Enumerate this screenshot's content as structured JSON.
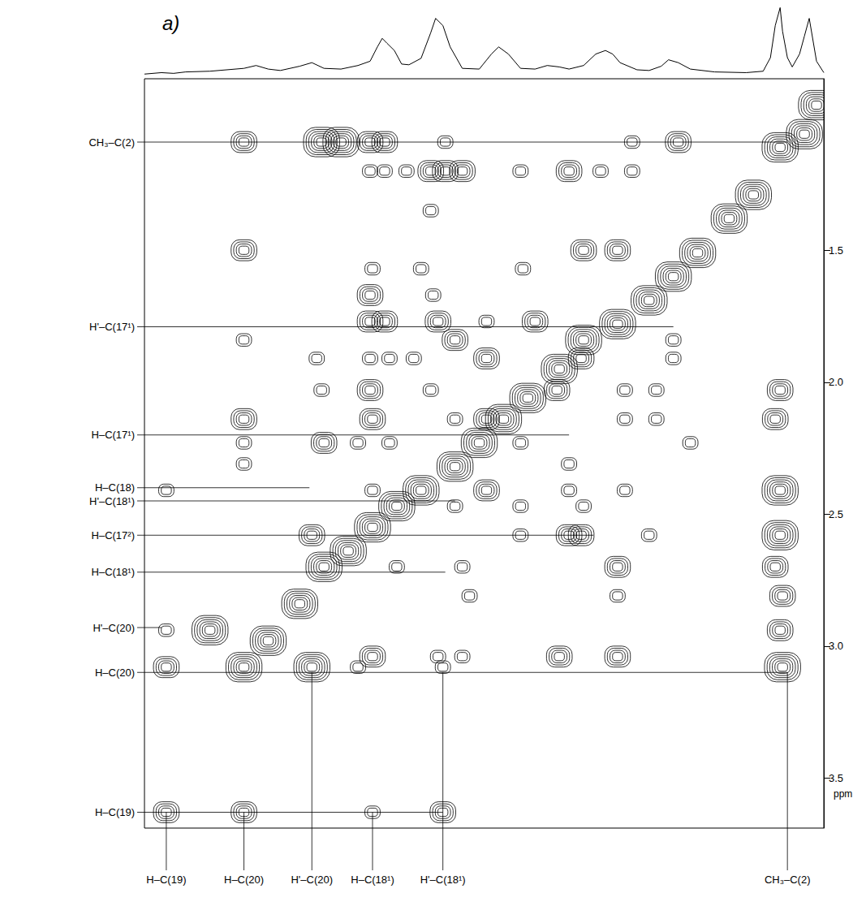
{
  "chart_data": {
    "type": "contour",
    "panel_label": "a)",
    "color": "#000000",
    "grid": false,
    "tick_labels": "y",
    "xlim": [
      3.75,
      0.95
    ],
    "ylim": [
      3.69,
      0.85
    ],
    "yticks": [
      1.5,
      {
        "value": 2,
        "label": "2.0"
      },
      2.5,
      {
        "value": 3,
        "label": "3.0"
      },
      3.5
    ],
    "y_axis_label": "ppm",
    "spectrum": {
      "ylim": [
        0,
        100
      ],
      "x": [
        3.75,
        3.68,
        3.63,
        3.58,
        3.48,
        3.34,
        3.29,
        3.24,
        3.19,
        3.11,
        3.06,
        3.01,
        2.94,
        2.87,
        2.82,
        2.79,
        2.77,
        2.75,
        2.72,
        2.69,
        2.66,
        2.61,
        2.57,
        2.55,
        2.52,
        2.49,
        2.44,
        2.37,
        2.32,
        2.29,
        2.25,
        2.2,
        2.14,
        2.09,
        2.04,
        2.0,
        1.94,
        1.89,
        1.85,
        1.82,
        1.79,
        1.72,
        1.67,
        1.62,
        1.59,
        1.55,
        1.5,
        1.4,
        1.27,
        1.2,
        1.17,
        1.15,
        1.13,
        1.12,
        1.1,
        1.08,
        1.05,
        1.03,
        1.01,
        0.98,
        0.95
      ],
      "intensity": [
        2,
        4,
        3,
        5,
        6,
        10,
        14,
        9,
        7,
        13,
        18,
        10,
        9,
        14,
        20,
        40,
        52,
        45,
        35,
        16,
        15,
        24,
        60,
        80,
        70,
        40,
        10,
        9,
        30,
        40,
        30,
        10,
        9,
        14,
        12,
        9,
        14,
        30,
        35,
        30,
        18,
        8,
        7,
        13,
        22,
        18,
        9,
        5,
        4,
        6,
        25,
        70,
        95,
        62,
        25,
        12,
        30,
        55,
        80,
        20,
        4
      ]
    },
    "peaks": [
      [
        3.34,
        1.09,
        2
      ],
      [
        3.02,
        1.09,
        3
      ],
      [
        2.94,
        1.09,
        3
      ],
      [
        2.82,
        1.09,
        2
      ],
      [
        2.76,
        1.09,
        2
      ],
      [
        2.51,
        1.09,
        1
      ],
      [
        1.74,
        1.09,
        1
      ],
      [
        1.55,
        1.09,
        2
      ],
      [
        2.82,
        1.2,
        1
      ],
      [
        2.76,
        1.2,
        1
      ],
      [
        2.67,
        1.2,
        1
      ],
      [
        2.57,
        1.2,
        2
      ],
      [
        2.51,
        1.2,
        2
      ],
      [
        2.44,
        1.2,
        2
      ],
      [
        2.2,
        1.2,
        1
      ],
      [
        2.0,
        1.2,
        2
      ],
      [
        1.87,
        1.2,
        1
      ],
      [
        1.74,
        1.2,
        1
      ],
      [
        2.57,
        1.35,
        1
      ],
      [
        3.34,
        1.5,
        2
      ],
      [
        1.94,
        1.5,
        2
      ],
      [
        1.8,
        1.5,
        2
      ],
      [
        2.81,
        1.57,
        1
      ],
      [
        2.61,
        1.57,
        1
      ],
      [
        2.19,
        1.57,
        1
      ],
      [
        2.82,
        1.67,
        2
      ],
      [
        2.56,
        1.67,
        1
      ],
      [
        2.82,
        1.77,
        2
      ],
      [
        2.76,
        1.77,
        2
      ],
      [
        2.54,
        1.77,
        2
      ],
      [
        2.34,
        1.77,
        1
      ],
      [
        2.14,
        1.77,
        2
      ],
      [
        3.34,
        1.84,
        1
      ],
      [
        2.47,
        1.84,
        2
      ],
      [
        1.57,
        1.84,
        1
      ],
      [
        3.04,
        1.91,
        1
      ],
      [
        2.82,
        1.91,
        1
      ],
      [
        2.74,
        1.91,
        1
      ],
      [
        2.64,
        1.91,
        1
      ],
      [
        2.34,
        1.91,
        2
      ],
      [
        1.95,
        1.91,
        2
      ],
      [
        1.57,
        1.91,
        1
      ],
      [
        3.02,
        2.03,
        1
      ],
      [
        2.82,
        2.03,
        2
      ],
      [
        2.57,
        2.03,
        1
      ],
      [
        2.05,
        2.03,
        2
      ],
      [
        1.77,
        2.03,
        1
      ],
      [
        1.64,
        2.03,
        1
      ],
      [
        1.13,
        2.03,
        2
      ],
      [
        3.34,
        2.14,
        2
      ],
      [
        2.81,
        2.14,
        2
      ],
      [
        2.47,
        2.14,
        1
      ],
      [
        2.34,
        2.14,
        2
      ],
      [
        1.77,
        2.14,
        1
      ],
      [
        1.64,
        2.14,
        1
      ],
      [
        1.15,
        2.14,
        2
      ],
      [
        3.34,
        2.23,
        1
      ],
      [
        3.01,
        2.23,
        2
      ],
      [
        2.87,
        2.23,
        1
      ],
      [
        2.74,
        2.23,
        1
      ],
      [
        2.2,
        2.23,
        1
      ],
      [
        1.5,
        2.23,
        1
      ],
      [
        3.34,
        2.31,
        1
      ],
      [
        2.0,
        2.31,
        1
      ],
      [
        3.66,
        2.41,
        1
      ],
      [
        2.81,
        2.41,
        1
      ],
      [
        2.34,
        2.41,
        2
      ],
      [
        2.0,
        2.41,
        1
      ],
      [
        1.77,
        2.41,
        1
      ],
      [
        1.13,
        2.41,
        3
      ],
      [
        2.47,
        2.47,
        1
      ],
      [
        2.2,
        2.47,
        1
      ],
      [
        1.94,
        2.47,
        1
      ],
      [
        3.06,
        2.58,
        2
      ],
      [
        2.2,
        2.58,
        1
      ],
      [
        2.0,
        2.58,
        2
      ],
      [
        1.95,
        2.58,
        2
      ],
      [
        1.67,
        2.58,
        1
      ],
      [
        1.13,
        2.58,
        3
      ],
      [
        2.71,
        2.7,
        1
      ],
      [
        2.44,
        2.7,
        1
      ],
      [
        1.8,
        2.7,
        2
      ],
      [
        1.15,
        2.7,
        2
      ],
      [
        2.41,
        2.81,
        1
      ],
      [
        1.8,
        2.81,
        1
      ],
      [
        1.12,
        2.81,
        2
      ],
      [
        3.66,
        2.94,
        1
      ],
      [
        1.13,
        2.94,
        2
      ],
      [
        2.81,
        3.04,
        2
      ],
      [
        2.54,
        3.04,
        1
      ],
      [
        2.44,
        3.04,
        1
      ],
      [
        2.04,
        3.04,
        2
      ],
      [
        1.8,
        3.04,
        2
      ],
      [
        3.66,
        3.08,
        2
      ],
      [
        3.06,
        3.08,
        3
      ],
      [
        2.87,
        3.08,
        1
      ],
      [
        2.52,
        3.08,
        1
      ],
      [
        1.12,
        3.08,
        3
      ],
      [
        3.66,
        3.63,
        2
      ],
      [
        3.34,
        3.63,
        2
      ],
      [
        2.81,
        3.63,
        1
      ],
      [
        2.52,
        3.63,
        2
      ],
      [
        3.48,
        2.94,
        3
      ],
      [
        3.34,
        3.08,
        3
      ],
      [
        3.24,
        2.98,
        3
      ],
      [
        3.11,
        2.84,
        3
      ],
      [
        3.01,
        2.7,
        3
      ],
      [
        2.91,
        2.64,
        3
      ],
      [
        2.81,
        2.55,
        3
      ],
      [
        2.71,
        2.47,
        3
      ],
      [
        2.61,
        2.41,
        3
      ],
      [
        2.47,
        2.32,
        3
      ],
      [
        2.37,
        2.23,
        3
      ],
      [
        2.27,
        2.14,
        3
      ],
      [
        2.17,
        2.06,
        3
      ],
      [
        2.04,
        1.95,
        3
      ],
      [
        1.94,
        1.84,
        3
      ],
      [
        1.8,
        1.78,
        3
      ],
      [
        1.67,
        1.69,
        3
      ],
      [
        1.57,
        1.6,
        3
      ],
      [
        1.47,
        1.51,
        3
      ],
      [
        1.34,
        1.38,
        3
      ],
      [
        1.24,
        1.29,
        3
      ],
      [
        1.13,
        1.11,
        3
      ],
      [
        1.03,
        1.06,
        3
      ],
      [
        0.98,
        0.95,
        3
      ]
    ],
    "row_labels": [
      {
        "label": "CH₃–C(2)",
        "y": 1.09,
        "x_to": 1.1
      },
      {
        "label": "H'–C(17¹)",
        "y": 1.79,
        "x_to": 1.57
      },
      {
        "label": "H–C(17¹)",
        "y": 2.2,
        "x_to": 2.0
      },
      {
        "label": "H–C(18)",
        "y": 2.4,
        "x_to": 3.07
      },
      {
        "label": "H'–C(18¹)",
        "y": 2.45,
        "x_to": 2.47
      },
      {
        "label": "H–C(17²)",
        "y": 2.58,
        "x_to": 1.9
      },
      {
        "label": "H–C(18¹)",
        "y": 2.72,
        "x_to": 2.51
      },
      {
        "label": "H'–C(20)",
        "y": 2.93,
        "x_to": 3.68
      },
      {
        "label": "H–C(20)",
        "y": 3.1,
        "x_to": 1.1
      },
      {
        "label": "H–C(19)",
        "y": 3.63,
        "x_to": 2.52
      }
    ],
    "column_labels": [
      {
        "label": "H–C(19)",
        "x": 3.66,
        "y_to": 3.63
      },
      {
        "label": "H–C(20)",
        "x": 3.34,
        "y_to": 3.63
      },
      {
        "label": "H'–C(20)",
        "x": 3.06,
        "y_to": 3.1
      },
      {
        "label": "H–C(18¹)",
        "x": 2.81,
        "y_to": 3.63
      },
      {
        "label": "H'–C(18¹)",
        "x": 2.52,
        "y_to": 3.1
      },
      {
        "label": "CH₃–C(2)",
        "x": 1.1,
        "y_to": 3.1
      }
    ]
  }
}
